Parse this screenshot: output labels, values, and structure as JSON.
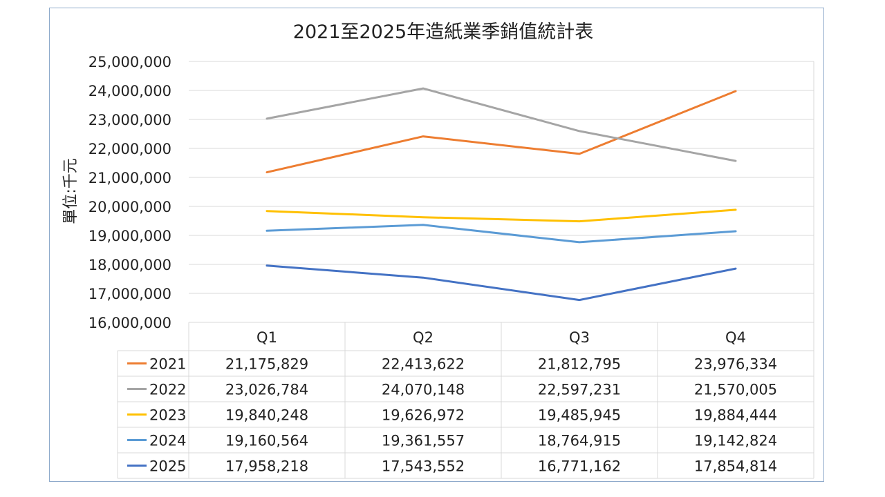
{
  "chart_data": {
    "type": "line",
    "title": "2021至2025年造紙業季銷值統計表",
    "ylabel": "單位:千元",
    "xlabel": "",
    "ylim": [
      16000000,
      25000000
    ],
    "ytick_step": 1000000,
    "yticks": [
      "16,000,000",
      "17,000,000",
      "18,000,000",
      "19,000,000",
      "20,000,000",
      "21,000,000",
      "22,000,000",
      "23,000,000",
      "24,000,000",
      "25,000,000"
    ],
    "grid": true,
    "legend": "data-table",
    "categories": [
      "Q1",
      "Q2",
      "Q3",
      "Q4"
    ],
    "series": [
      {
        "name": "2021",
        "color": "#ed7d31",
        "values": [
          21175829,
          22413622,
          21812795,
          23976334
        ],
        "labels": [
          "21,175,829",
          "22,413,622",
          "21,812,795",
          "23,976,334"
        ]
      },
      {
        "name": "2022",
        "color": "#a5a5a5",
        "values": [
          23026784,
          24070148,
          22597231,
          21570005
        ],
        "labels": [
          "23,026,784",
          "24,070,148",
          "22,597,231",
          "21,570,005"
        ]
      },
      {
        "name": "2023",
        "color": "#ffc000",
        "values": [
          19840248,
          19626972,
          19485945,
          19884444
        ],
        "labels": [
          "19,840,248",
          "19,626,972",
          "19,485,945",
          "19,884,444"
        ]
      },
      {
        "name": "2024",
        "color": "#5b9bd5",
        "values": [
          19160564,
          19361557,
          18764915,
          19142824
        ],
        "labels": [
          "19,160,564",
          "19,361,557",
          "18,764,915",
          "19,142,824"
        ]
      },
      {
        "name": "2025",
        "color": "#4472c4",
        "values": [
          17958218,
          17543552,
          16771162,
          17854814
        ],
        "labels": [
          "17,958,218",
          "17,543,552",
          "16,771,162",
          "17,854,814"
        ]
      }
    ]
  }
}
